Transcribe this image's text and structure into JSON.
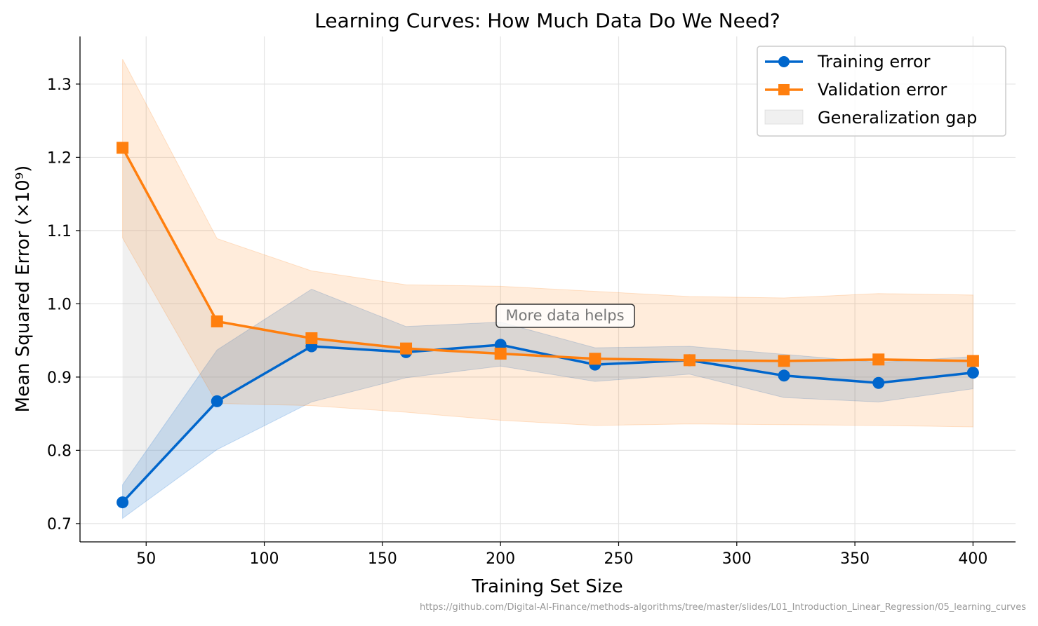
{
  "chart_data": {
    "type": "line",
    "title": "Learning Curves: How Much Data Do We Need?",
    "xlabel": "Training Set Size",
    "ylabel": "Mean Squared Error (×10⁹)",
    "xlim": [
      22,
      418
    ],
    "ylim": [
      0.675,
      1.365
    ],
    "xticks": [
      50,
      100,
      150,
      200,
      250,
      300,
      350,
      400
    ],
    "yticks": [
      0.7,
      0.8,
      0.9,
      1.0,
      1.1,
      1.2,
      1.3
    ],
    "ytick_labels": [
      "0.7",
      "0.8",
      "0.9",
      "1.0",
      "1.1",
      "1.2",
      "1.3"
    ],
    "grid": true,
    "legend_position": "top-right",
    "x": [
      40,
      80,
      120,
      160,
      200,
      240,
      280,
      320,
      360,
      400
    ],
    "series": [
      {
        "name": "Training error",
        "color": "#0066cc",
        "marker": "circle",
        "values": [
          0.729,
          0.867,
          0.942,
          0.934,
          0.944,
          0.917,
          0.923,
          0.902,
          0.892,
          0.906
        ],
        "band_upper": [
          0.753,
          0.937,
          1.02,
          0.969,
          0.975,
          0.94,
          0.942,
          0.931,
          0.92,
          0.928
        ],
        "band_lower": [
          0.707,
          0.801,
          0.866,
          0.899,
          0.915,
          0.894,
          0.904,
          0.872,
          0.866,
          0.884
        ]
      },
      {
        "name": "Validation error",
        "color": "#ff7f0e",
        "marker": "square",
        "values": [
          1.213,
          0.976,
          0.953,
          0.939,
          0.932,
          0.925,
          0.923,
          0.922,
          0.924,
          0.922
        ],
        "band_upper": [
          1.334,
          1.089,
          1.045,
          1.026,
          1.024,
          1.017,
          1.01,
          1.008,
          1.014,
          1.012
        ],
        "band_lower": [
          1.09,
          0.864,
          0.861,
          0.852,
          0.841,
          0.834,
          0.836,
          0.835,
          0.834,
          0.832
        ]
      }
    ],
    "gap_fill": {
      "name": "Generalization gap",
      "color": "#cccccc"
    },
    "annotation": {
      "text": "More data helps",
      "x": 200,
      "y": 0.98
    }
  },
  "footer": {
    "source_url": "https://github.com/Digital-AI-Finance/methods-algorithms/tree/master/slides/L01_Introduction_Linear_Regression/05_learning_curves"
  }
}
